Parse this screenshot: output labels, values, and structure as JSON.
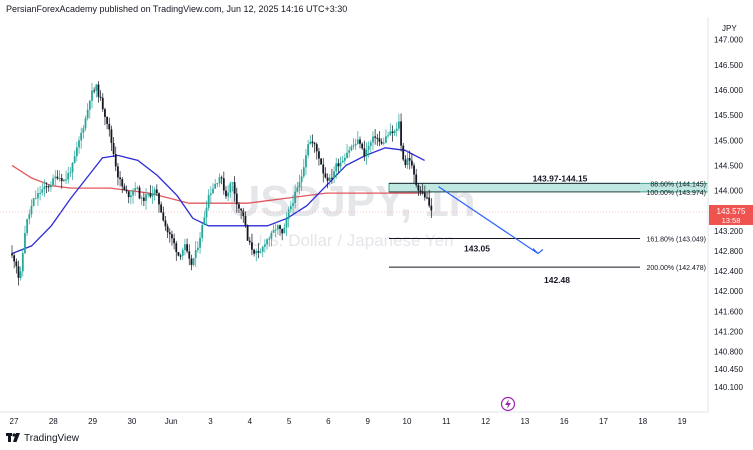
{
  "header": {
    "publisher_line": "PersianForexAcademy published on TradingView.com, Jun 12, 2025 14:16 UTC+3:30"
  },
  "footer": {
    "brand": "TradingView",
    "logo_icon": "tradingview-logo-icon"
  },
  "watermark": {
    "symbol": "USDJPY, 1h",
    "description": "U.S. Dollar / Japanese Yen"
  },
  "colors": {
    "up": "#26a69a",
    "down": "#131722",
    "ma_fast": "#2c2cd9",
    "ma_slow": "#e0585d",
    "zone_fill": "#bfe8e0",
    "zone_border": "#1e8a74",
    "arrow": "#2962ff",
    "current_price_bg": "#ef5350",
    "current_price_line": "#f7a8a8"
  },
  "chart_data": {
    "type": "candlestick",
    "timeframe": "1h",
    "currency": "JPY",
    "ylim": [
      139.6,
      147.45
    ],
    "y_ticks": [
      "147.000",
      "146.500",
      "146.000",
      "145.500",
      "145.000",
      "144.500",
      "144.000",
      "143.200",
      "142.800",
      "142.400",
      "142.000",
      "141.600",
      "141.200",
      "140.800",
      "140.450",
      "140.100"
    ],
    "x_ticks": [
      "27",
      "28",
      "29",
      "30",
      "Jun",
      "3",
      "4",
      "5",
      "6",
      "9",
      "10",
      "11",
      "12",
      "13",
      "16",
      "17",
      "18",
      "19"
    ],
    "current_price": "143.575",
    "countdown": "13:58",
    "last_close": 143.575,
    "fib_levels": [
      {
        "label": "88.60% (144.145)",
        "value": 144.145
      },
      {
        "label": "100.00% (143.974)",
        "value": 143.974
      },
      {
        "label": "161.80% (143.049)",
        "value": 143.049
      },
      {
        "label": "200.00% (142.478)",
        "value": 142.478
      }
    ],
    "annotations": [
      {
        "text": "143.97-144.15",
        "type": "zone",
        "low": 143.974,
        "high": 144.145
      },
      {
        "text": "143.05",
        "type": "level",
        "value": 143.049
      },
      {
        "text": "142.48",
        "type": "level",
        "value": 142.478
      }
    ],
    "projection": {
      "from": 144.08,
      "to": 142.75
    },
    "price_path": [
      {
        "day": 0.0,
        "price": 142.75
      },
      {
        "day": 0.15,
        "price": 142.6
      },
      {
        "day": 0.25,
        "price": 142.15
      },
      {
        "day": 0.4,
        "price": 143.3
      },
      {
        "day": 0.6,
        "price": 143.8
      },
      {
        "day": 0.8,
        "price": 144.0
      },
      {
        "day": 1.0,
        "price": 144.1
      },
      {
        "day": 1.2,
        "price": 144.3
      },
      {
        "day": 1.4,
        "price": 144.2
      },
      {
        "day": 1.6,
        "price": 144.5
      },
      {
        "day": 1.8,
        "price": 145.1
      },
      {
        "day": 1.95,
        "price": 145.5
      },
      {
        "day": 2.05,
        "price": 145.9
      },
      {
        "day": 2.2,
        "price": 146.05
      },
      {
        "day": 2.35,
        "price": 145.7
      },
      {
        "day": 2.5,
        "price": 145.3
      },
      {
        "day": 2.6,
        "price": 144.9
      },
      {
        "day": 2.75,
        "price": 144.3
      },
      {
        "day": 2.9,
        "price": 144.0
      },
      {
        "day": 3.05,
        "price": 143.9
      },
      {
        "day": 3.2,
        "price": 144.1
      },
      {
        "day": 3.35,
        "price": 143.8
      },
      {
        "day": 3.5,
        "price": 143.9
      },
      {
        "day": 3.7,
        "price": 144.0
      },
      {
        "day": 3.85,
        "price": 143.6
      },
      {
        "day": 4.0,
        "price": 143.2
      },
      {
        "day": 4.15,
        "price": 143.0
      },
      {
        "day": 4.3,
        "price": 142.7
      },
      {
        "day": 4.45,
        "price": 142.9
      },
      {
        "day": 4.6,
        "price": 142.5
      },
      {
        "day": 4.75,
        "price": 142.8
      },
      {
        "day": 4.9,
        "price": 143.3
      },
      {
        "day": 5.05,
        "price": 143.9
      },
      {
        "day": 5.2,
        "price": 144.1
      },
      {
        "day": 5.35,
        "price": 144.3
      },
      {
        "day": 5.5,
        "price": 143.9
      },
      {
        "day": 5.65,
        "price": 144.2
      },
      {
        "day": 5.8,
        "price": 143.7
      },
      {
        "day": 5.95,
        "price": 143.5
      },
      {
        "day": 6.05,
        "price": 143.0
      },
      {
        "day": 6.2,
        "price": 142.8
      },
      {
        "day": 6.35,
        "price": 142.7
      },
      {
        "day": 6.5,
        "price": 143.0
      },
      {
        "day": 6.65,
        "price": 143.1
      },
      {
        "day": 6.8,
        "price": 143.3
      },
      {
        "day": 6.95,
        "price": 143.1
      },
      {
        "day": 7.1,
        "price": 143.6
      },
      {
        "day": 7.25,
        "price": 143.9
      },
      {
        "day": 7.4,
        "price": 144.2
      },
      {
        "day": 7.5,
        "price": 144.6
      },
      {
        "day": 7.6,
        "price": 145.0
      },
      {
        "day": 7.75,
        "price": 144.9
      },
      {
        "day": 7.9,
        "price": 144.6
      },
      {
        "day": 8.0,
        "price": 144.3
      },
      {
        "day": 8.15,
        "price": 144.2
      },
      {
        "day": 8.3,
        "price": 144.5
      },
      {
        "day": 8.45,
        "price": 144.6
      },
      {
        "day": 8.6,
        "price": 144.8
      },
      {
        "day": 8.75,
        "price": 144.9
      },
      {
        "day": 8.9,
        "price": 145.0
      },
      {
        "day": 9.0,
        "price": 144.7
      },
      {
        "day": 9.15,
        "price": 144.9
      },
      {
        "day": 9.3,
        "price": 145.1
      },
      {
        "day": 9.45,
        "price": 144.9
      },
      {
        "day": 9.6,
        "price": 145.1
      },
      {
        "day": 9.75,
        "price": 145.15
      },
      {
        "day": 9.85,
        "price": 145.2
      },
      {
        "day": 9.9,
        "price": 145.4
      },
      {
        "day": 9.95,
        "price": 144.9
      },
      {
        "day": 10.05,
        "price": 144.5
      },
      {
        "day": 10.15,
        "price": 144.7
      },
      {
        "day": 10.25,
        "price": 144.4
      },
      {
        "day": 10.35,
        "price": 144.1
      },
      {
        "day": 10.45,
        "price": 144.0
      },
      {
        "day": 10.55,
        "price": 143.9
      },
      {
        "day": 10.65,
        "price": 143.8
      },
      {
        "day": 10.7,
        "price": 143.575
      }
    ],
    "ma_fast_path": [
      {
        "day": 0.0,
        "price": 142.75
      },
      {
        "day": 0.5,
        "price": 142.9
      },
      {
        "day": 1.0,
        "price": 143.3
      },
      {
        "day": 1.5,
        "price": 143.85
      },
      {
        "day": 2.0,
        "price": 144.35
      },
      {
        "day": 2.3,
        "price": 144.65
      },
      {
        "day": 2.7,
        "price": 144.7
      },
      {
        "day": 3.2,
        "price": 144.6
      },
      {
        "day": 3.7,
        "price": 144.3
      },
      {
        "day": 4.2,
        "price": 143.9
      },
      {
        "day": 4.6,
        "price": 143.45
      },
      {
        "day": 5.0,
        "price": 143.3
      },
      {
        "day": 5.5,
        "price": 143.3
      },
      {
        "day": 6.0,
        "price": 143.3
      },
      {
        "day": 6.5,
        "price": 143.3
      },
      {
        "day": 7.0,
        "price": 143.45
      },
      {
        "day": 7.5,
        "price": 143.7
      },
      {
        "day": 8.0,
        "price": 144.1
      },
      {
        "day": 8.5,
        "price": 144.5
      },
      {
        "day": 9.0,
        "price": 144.7
      },
      {
        "day": 9.5,
        "price": 144.85
      },
      {
        "day": 10.0,
        "price": 144.8
      },
      {
        "day": 10.5,
        "price": 144.6
      }
    ],
    "ma_slow_path": [
      {
        "day": 0.0,
        "price": 144.5
      },
      {
        "day": 0.5,
        "price": 144.25
      },
      {
        "day": 1.0,
        "price": 144.1
      },
      {
        "day": 1.5,
        "price": 144.05
      },
      {
        "day": 2.0,
        "price": 144.05
      },
      {
        "day": 2.5,
        "price": 144.05
      },
      {
        "day": 3.0,
        "price": 144.0
      },
      {
        "day": 3.5,
        "price": 143.95
      },
      {
        "day": 4.0,
        "price": 143.85
      },
      {
        "day": 4.5,
        "price": 143.75
      },
      {
        "day": 5.0,
        "price": 143.75
      },
      {
        "day": 5.5,
        "price": 143.75
      },
      {
        "day": 6.0,
        "price": 143.75
      },
      {
        "day": 6.5,
        "price": 143.8
      },
      {
        "day": 7.0,
        "price": 143.85
      },
      {
        "day": 7.5,
        "price": 143.9
      },
      {
        "day": 8.0,
        "price": 143.95
      },
      {
        "day": 8.5,
        "price": 143.95
      },
      {
        "day": 9.0,
        "price": 143.95
      },
      {
        "day": 9.5,
        "price": 143.95
      },
      {
        "day": 10.0,
        "price": 143.95
      },
      {
        "day": 10.5,
        "price": 143.95
      }
    ]
  }
}
